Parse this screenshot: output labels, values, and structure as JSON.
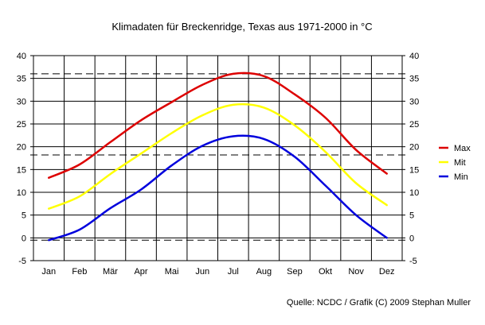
{
  "chart_data": {
    "type": "line",
    "title": "Klimadaten für Breckenridge, Texas aus 1971-2000 in °C",
    "categories": [
      "Jan",
      "Feb",
      "Mär",
      "Apr",
      "Mai",
      "Jun",
      "Jul",
      "Aug",
      "Sep",
      "Okt",
      "Nov",
      "Dez"
    ],
    "ylim": [
      -5,
      40
    ],
    "y_ticks": [
      "-5",
      "0",
      "5",
      "10",
      "15",
      "20",
      "25",
      "30",
      "35",
      "40"
    ],
    "grid": true,
    "right_axis": true,
    "legend_position": "right",
    "series": [
      {
        "name": "Max",
        "color": "#dd0000",
        "values": [
          13.2,
          16.1,
          21.0,
          25.8,
          29.8,
          33.6,
          36.0,
          35.5,
          31.5,
          26.4,
          19.3,
          14.1
        ]
      },
      {
        "name": "Mit",
        "color": "#ffff00",
        "values": [
          6.4,
          9.1,
          14.0,
          18.5,
          23.0,
          26.9,
          29.2,
          28.6,
          24.7,
          18.9,
          12.0,
          7.2
        ]
      },
      {
        "name": "Min",
        "color": "#0000dd",
        "values": [
          -0.5,
          1.8,
          6.5,
          10.6,
          15.9,
          20.2,
          22.3,
          21.7,
          17.8,
          11.5,
          5.0,
          0.0
        ]
      }
    ],
    "reference_lines": [
      36.0,
      18.2,
      -0.5
    ],
    "source": "Quelle: NCDC / Grafik (C) 2009 Stephan Muller"
  }
}
